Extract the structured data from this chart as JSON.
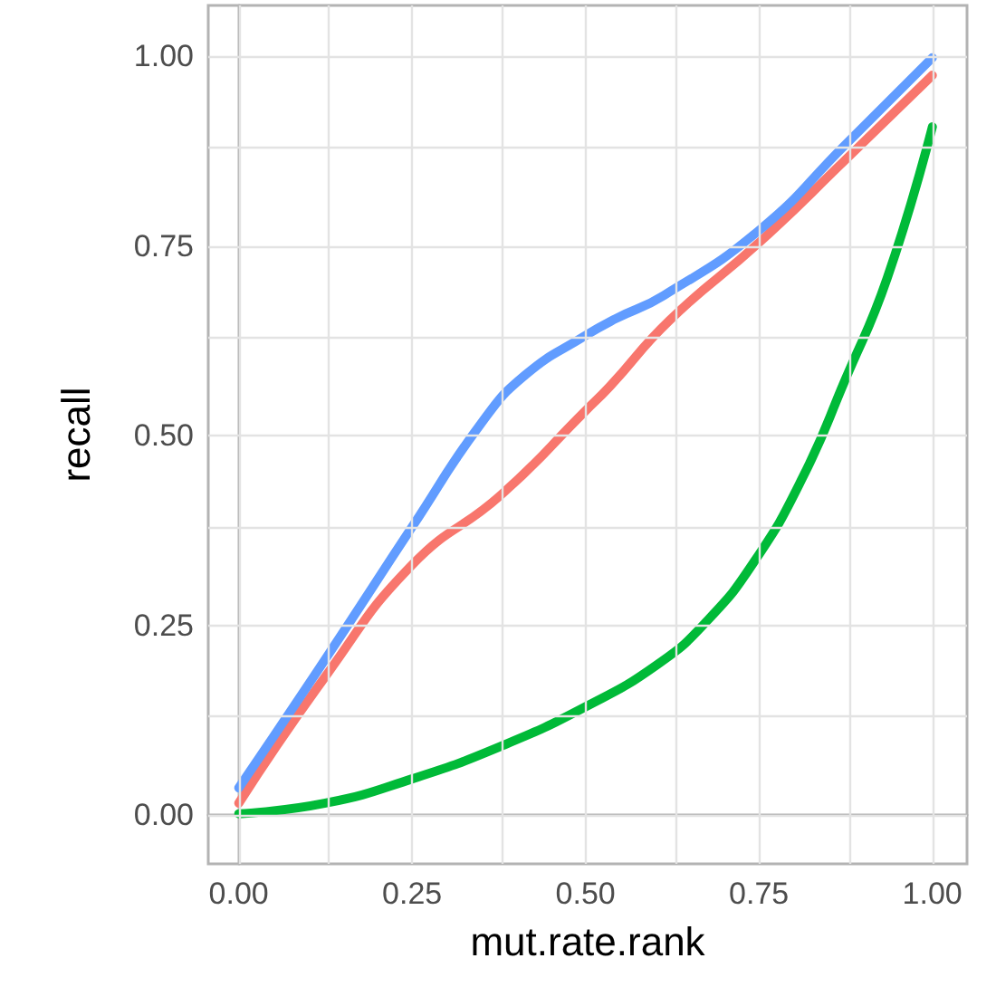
{
  "chart_data": {
    "type": "line",
    "xlabel": "mut.rate.rank",
    "ylabel": "recall",
    "xlim": [
      -0.044,
      1.05
    ],
    "ylim": [
      -0.064,
      1.067
    ],
    "xticks": [
      {
        "value": 0,
        "label": "0.00"
      },
      {
        "value": 0.25,
        "label": "0.25"
      },
      {
        "value": 0.5,
        "label": "0.50"
      },
      {
        "value": 0.75,
        "label": "0.75"
      },
      {
        "value": 1,
        "label": "1.00"
      }
    ],
    "yticks": [
      {
        "value": 0,
        "label": "0.00"
      },
      {
        "value": 0.25,
        "label": "0.25"
      },
      {
        "value": 0.5,
        "label": "0.50"
      },
      {
        "value": 0.75,
        "label": "0.75"
      },
      {
        "value": 1,
        "label": "1.00"
      }
    ],
    "grid": true,
    "marker": "none",
    "line_style": "solid",
    "series": [
      {
        "color": "#f8766d",
        "x": [
          0,
          0.125,
          0.25,
          0.378,
          0.5,
          0.535,
          0.621,
          0.752,
          0.874,
          1
        ],
        "values": [
          0.016,
          0.183,
          0.33,
          0.422,
          0.533,
          0.565,
          0.652,
          0.756,
          0.863,
          0.975
        ]
      },
      {
        "color": "#00ba38",
        "x": [
          0,
          0.125,
          0.25,
          0.378,
          0.5,
          0.604,
          0.674,
          0.743,
          0.813,
          0.874,
          0.935,
          1
        ],
        "values": [
          0.002,
          0.016,
          0.048,
          0.091,
          0.143,
          0.199,
          0.255,
          0.334,
          0.445,
          0.573,
          0.708,
          0.907
        ]
      },
      {
        "color": "#619cff",
        "x": [
          0,
          0.125,
          0.25,
          0.35,
          0.413,
          0.5,
          0.543,
          0.613,
          0.752,
          0.874,
          1
        ],
        "values": [
          0.036,
          0.206,
          0.38,
          0.517,
          0.58,
          0.632,
          0.654,
          0.685,
          0.772,
          0.883,
          0.998
        ]
      }
    ]
  }
}
